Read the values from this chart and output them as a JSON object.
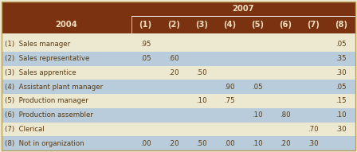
{
  "title_2007": "2007",
  "title_2004": "2004",
  "col_headers": [
    "(1)",
    "(2)",
    "(3)",
    "(4)",
    "(5)",
    "(6)",
    "(7)",
    "(8)"
  ],
  "rows": [
    {
      "label": "(1)  Sales manager",
      "values": [
        ".95",
        "",
        "",
        "",
        "",
        "",
        "",
        ".05"
      ]
    },
    {
      "label": "(2)  Sales representative",
      "values": [
        ".05",
        ".60",
        "",
        "",
        "",
        "",
        "",
        ".35"
      ]
    },
    {
      "label": "(3)  Sales apprentice",
      "values": [
        "",
        ".20",
        ".50",
        "",
        "",
        "",
        "",
        ".30"
      ]
    },
    {
      "label": "(4)  Assistant plant manager",
      "values": [
        "",
        "",
        "",
        ".90",
        ".05",
        "",
        "",
        ".05"
      ]
    },
    {
      "label": "(5)  Production manager",
      "values": [
        "",
        "",
        ".10",
        ".75",
        "",
        "",
        "",
        ".15"
      ]
    },
    {
      "label": "(6)  Production assembler",
      "values": [
        "",
        "",
        "",
        "",
        ".10",
        ".80",
        "",
        ".10"
      ]
    },
    {
      "label": "(7)  Clerical",
      "values": [
        "",
        "",
        "",
        "",
        "",
        "",
        ".70",
        ".30"
      ]
    },
    {
      "label": "(8)  Not in organization",
      "values": [
        ".00",
        ".20",
        ".50",
        ".00",
        ".10",
        ".20",
        ".30",
        ""
      ]
    }
  ],
  "header_bg": "#7B3210",
  "header_fg": "#F0E0C0",
  "row_bg_light": "#EDE8D0",
  "row_bg_blue": "#B8CCDC",
  "outer_bg": "#EDE8D0",
  "text_color": "#5A3A10",
  "font_size": 6.2,
  "header_font_size": 7.2,
  "border_color": "#B8A060"
}
